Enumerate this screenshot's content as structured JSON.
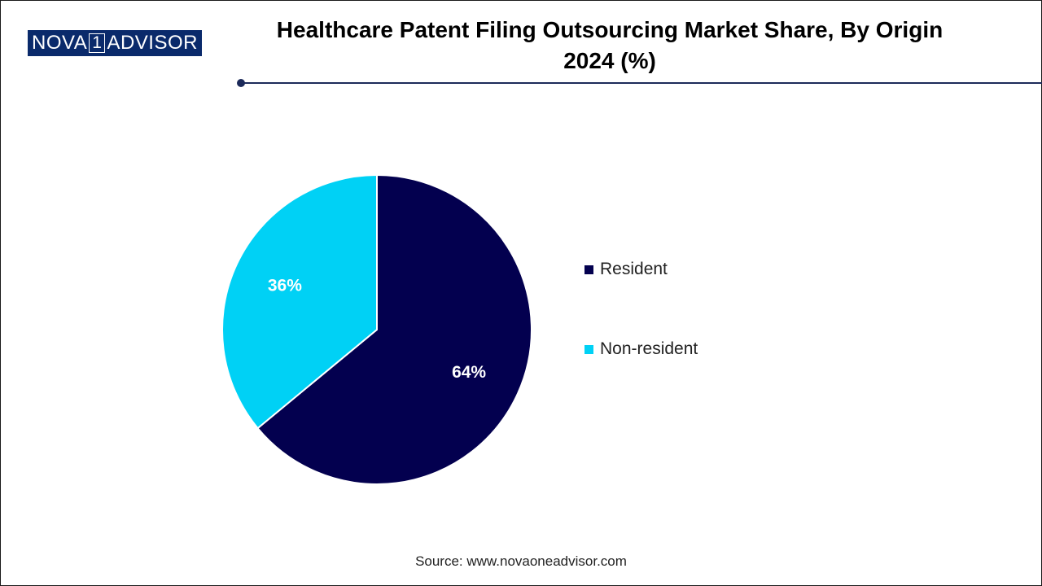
{
  "brand": {
    "part1": "NOVA",
    "part2": "1",
    "part3": "ADVISOR"
  },
  "header": {
    "title_line1": "Healthcare Patent Filing Outsourcing Market Share, By Origin",
    "title_line2": "2024 (%)"
  },
  "chart_data": {
    "type": "pie",
    "title": "Healthcare Patent Filing Outsourcing Market Share, By Origin 2024 (%)",
    "slices": [
      {
        "name": "Resident",
        "value": 64,
        "label": "64%",
        "color": "#03004f"
      },
      {
        "name": "Non-resident",
        "value": 36,
        "label": "36%",
        "color": "#00d1f5"
      }
    ],
    "start": "12 o'clock",
    "direction": "clockwise",
    "legend": {
      "position": "right"
    }
  },
  "footer": {
    "source": "Source: www.novaoneadvisor.com"
  }
}
